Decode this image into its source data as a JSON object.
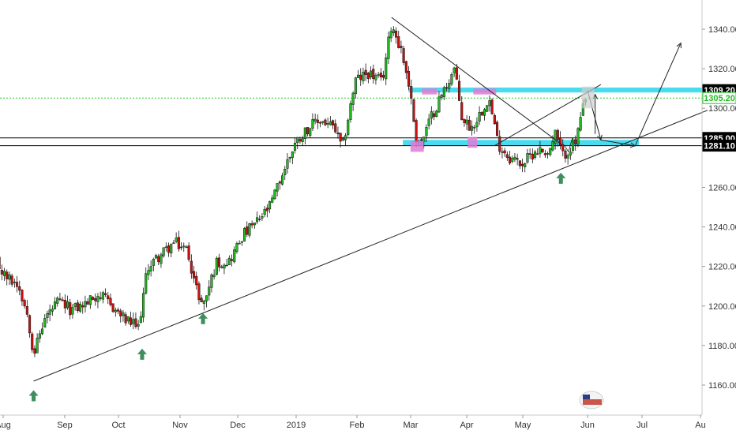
{
  "chart_data": {
    "type": "candlestick",
    "title": "",
    "xlabel": "",
    "ylabel": "",
    "ylim": [
      1143,
      1352
    ],
    "grid": false,
    "x_ticks": [
      "Aug",
      "Sep",
      "Oct",
      "Nov",
      "Dec",
      "2019",
      "Feb",
      "Mar",
      "Apr",
      "May",
      "Jun",
      "Jul",
      "Au"
    ],
    "y_ticks": [
      1160.0,
      1180.0,
      1200.0,
      1220.0,
      1240.0,
      1260.0,
      1280.0,
      1300.0,
      1320.0,
      1340.0
    ],
    "y_tick_labels": [
      "1160.00",
      "1180.00",
      "1200.00",
      "1220.00",
      "1240.00",
      "1260.00",
      "1280.00",
      "1300.00",
      "1320.00",
      "1340.00"
    ],
    "price_tags": [
      {
        "value": 1309.2,
        "label": "1309.20",
        "style": "dark"
      },
      {
        "value": 1305.2,
        "label": "1305.20",
        "style": "green"
      },
      {
        "value": 1285.0,
        "label": "1285.00",
        "style": "dark"
      },
      {
        "value": 1281.1,
        "label": "1281.10",
        "style": "dark"
      }
    ],
    "close_path": [
      [
        "2018-07-25",
        1226
      ],
      [
        "2018-08-01",
        1215
      ],
      [
        "2018-08-08",
        1211
      ],
      [
        "2018-08-13",
        1195
      ],
      [
        "2018-08-16",
        1176
      ],
      [
        "2018-08-22",
        1194
      ],
      [
        "2018-08-29",
        1202
      ],
      [
        "2018-09-05",
        1198
      ],
      [
        "2018-09-12",
        1201
      ],
      [
        "2018-09-19",
        1206
      ],
      [
        "2018-09-26",
        1200
      ],
      [
        "2018-10-03",
        1193
      ],
      [
        "2018-10-10",
        1189
      ],
      [
        "2018-10-15",
        1220
      ],
      [
        "2018-10-22",
        1226
      ],
      [
        "2018-10-29",
        1232
      ],
      [
        "2018-11-05",
        1228
      ],
      [
        "2018-11-09",
        1210
      ],
      [
        "2018-11-13",
        1200
      ],
      [
        "2018-11-20",
        1222
      ],
      [
        "2018-11-27",
        1223
      ],
      [
        "2018-12-04",
        1236
      ],
      [
        "2018-12-11",
        1242
      ],
      [
        "2018-12-18",
        1250
      ],
      [
        "2018-12-24",
        1265
      ],
      [
        "2018-12-31",
        1282
      ],
      [
        "2019-01-07",
        1290
      ],
      [
        "2019-01-14",
        1294
      ],
      [
        "2019-01-21",
        1290
      ],
      [
        "2019-01-25",
        1279
      ],
      [
        "2019-02-01",
        1314
      ],
      [
        "2019-02-08",
        1318
      ],
      [
        "2019-02-15",
        1313
      ],
      [
        "2019-02-20",
        1343
      ],
      [
        "2019-02-25",
        1330
      ],
      [
        "2019-03-01",
        1313
      ],
      [
        "2019-03-05",
        1285
      ],
      [
        "2019-03-08",
        1283
      ],
      [
        "2019-03-13",
        1296
      ],
      [
        "2019-03-20",
        1310
      ],
      [
        "2019-03-25",
        1320
      ],
      [
        "2019-03-29",
        1295
      ],
      [
        "2019-04-03",
        1290
      ],
      [
        "2019-04-09",
        1300
      ],
      [
        "2019-04-12",
        1306
      ],
      [
        "2019-04-17",
        1282
      ],
      [
        "2019-04-23",
        1275
      ],
      [
        "2019-04-30",
        1272
      ],
      [
        "2019-05-07",
        1279
      ],
      [
        "2019-05-14",
        1278
      ],
      [
        "2019-05-17",
        1287
      ],
      [
        "2019-05-21",
        1276
      ],
      [
        "2019-05-28",
        1283
      ],
      [
        "2019-05-31",
        1298
      ],
      [
        "2019-06-03",
        1305
      ]
    ],
    "trendlines": [
      {
        "from": [
          "2018-08-16",
          1162
        ],
        "to": [
          "2019-08-05",
          1299
        ]
      },
      {
        "from": [
          "2019-02-20",
          1346
        ],
        "to": [
          "2019-05-20",
          1282
        ]
      },
      {
        "from": [
          "2019-04-15",
          1281
        ],
        "to": [
          "2019-06-10",
          1312
        ]
      }
    ],
    "horizontal_lines": [
      {
        "value": 1281.1,
        "color": "#000000"
      },
      {
        "value": 1285.0,
        "color": "#000000"
      },
      {
        "value": 1305.2,
        "color": "#22cc22",
        "dashed": true
      }
    ],
    "zones": [
      {
        "from_date": "2019-03-01",
        "to_date": "2019-08-05",
        "low": 1308.0,
        "high": 1310.5,
        "color": "#29d6ec"
      },
      {
        "from_date": "2019-02-26",
        "to_date": "2019-06-30",
        "low": 1281.0,
        "high": 1284.0,
        "color": "#29d6ec"
      }
    ],
    "highlights": [
      {
        "from_date": "2019-03-08",
        "to_date": "2019-03-16",
        "low": 1307.0,
        "high": 1310.0
      },
      {
        "from_date": "2019-04-04",
        "to_date": "2019-04-16",
        "low": 1307.0,
        "high": 1310.0
      },
      {
        "from_date": "2019-03-02",
        "to_date": "2019-03-09",
        "low": 1278.0,
        "high": 1283.5
      },
      {
        "from_date": "2019-04-01",
        "to_date": "2019-04-06",
        "low": 1280.0,
        "high": 1285.5
      }
    ],
    "signal_arrows": [
      {
        "date": "2018-08-16",
        "value": 1155
      },
      {
        "date": "2018-10-12",
        "value": 1176
      },
      {
        "date": "2018-11-13",
        "value": 1194
      },
      {
        "date": "2019-05-20",
        "value": 1265
      }
    ],
    "projection_arrows": [
      {
        "from": [
          "2019-06-03",
          1309
        ],
        "to": [
          "2019-06-10",
          1284
        ]
      },
      {
        "from": [
          "2019-06-10",
          1284
        ],
        "to": [
          "2019-06-28",
          1281
        ]
      },
      {
        "from": [
          "2019-06-28",
          1281
        ],
        "to": [
          "2019-07-22",
          1333
        ]
      },
      {
        "from": [
          "2019-06-07",
          1287
        ],
        "to": [
          "2019-06-07",
          1307
        ]
      }
    ],
    "wedge_apex": [
      [
        "2019-05-22",
        1281
      ],
      [
        "2019-05-24",
        1278
      ],
      [
        "2019-05-26",
        1285
      ]
    ]
  }
}
